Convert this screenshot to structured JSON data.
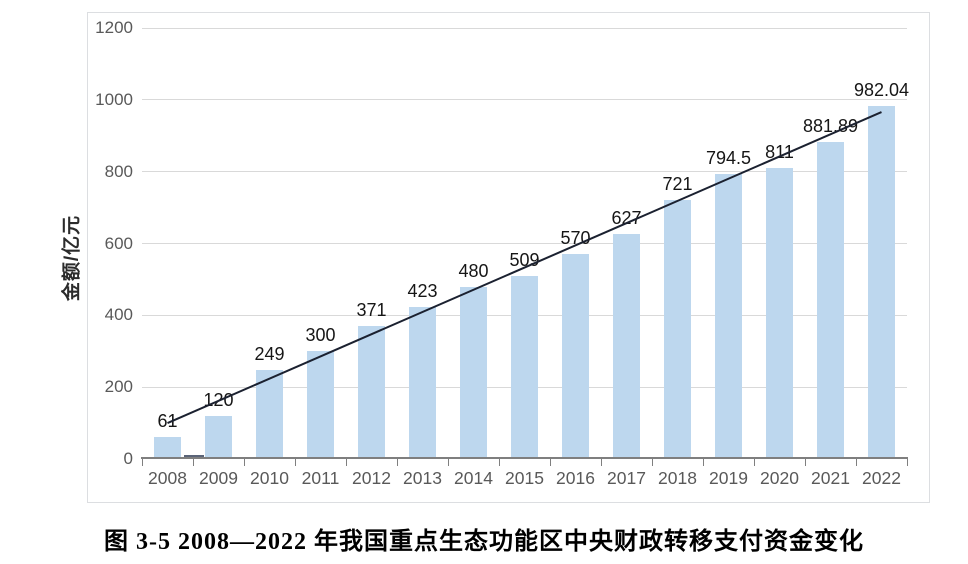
{
  "figure": {
    "caption": "图 3-5 2008—2022 年我国重点生态功能区中央财政转移支付资金变化"
  },
  "chart_data": {
    "type": "bar",
    "title": "",
    "xlabel": "",
    "ylabel": "金额/亿元",
    "categories": [
      "2008",
      "2009",
      "2010",
      "2011",
      "2012",
      "2013",
      "2014",
      "2015",
      "2016",
      "2017",
      "2018",
      "2019",
      "2020",
      "2021",
      "2022"
    ],
    "values": [
      61,
      120,
      249,
      300,
      371,
      423,
      480,
      509,
      570,
      627,
      721,
      794.5,
      811,
      881.89,
      982.04
    ],
    "data_labels": [
      "61",
      "120",
      "249",
      "300",
      "371",
      "423",
      "480",
      "509",
      "570",
      "627",
      "721",
      "794.5",
      "811",
      "881.89",
      "982.04"
    ],
    "ylim": [
      0,
      1200
    ],
    "yticks": [
      0,
      200,
      400,
      600,
      800,
      1000,
      1200
    ],
    "grid": true,
    "legend": "none",
    "bar_color": "#bdd7ee",
    "axis_color": "#7f7f7f",
    "gridline_color": "#d9d9d9",
    "tick_label_color": "#595959",
    "trendline": {
      "start_value": 100,
      "end_value": 966,
      "color": "#1b2130",
      "width": 2
    },
    "secondary_bar": {
      "category": "2008",
      "value": 10,
      "color": "#5b6478"
    }
  }
}
